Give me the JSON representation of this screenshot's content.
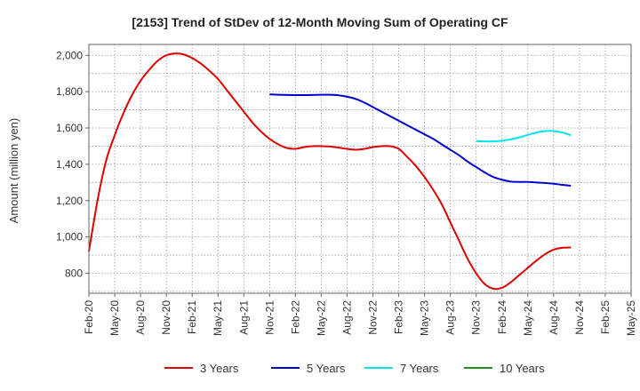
{
  "chart_data": {
    "type": "line",
    "title": "[2153]  Trend of StDev of 12-Month Moving Sum of Operating CF",
    "xlabel": "",
    "ylabel": "Amount (million yen)",
    "ylim": [
      690,
      2060
    ],
    "yticks": [
      800,
      1000,
      1200,
      1400,
      1600,
      1800,
      2000
    ],
    "ytick_labels": [
      "800",
      "1,000",
      "1,200",
      "1,400",
      "1,600",
      "1,800",
      "2,000"
    ],
    "categories": [
      "Feb-20",
      "May-20",
      "Aug-20",
      "Nov-20",
      "Feb-21",
      "May-21",
      "Aug-21",
      "Nov-21",
      "Feb-22",
      "May-22",
      "Aug-22",
      "Nov-22",
      "Feb-23",
      "May-23",
      "Aug-23",
      "Nov-23",
      "Feb-24",
      "May-24",
      "Aug-24",
      "Nov-24",
      "Feb-25",
      "May-25"
    ],
    "grid": true,
    "legend_position": "bottom",
    "series": [
      {
        "name": "3 Years",
        "color": "#dd0000",
        "points": [
          [
            0,
            920
          ],
          [
            1,
            1200
          ],
          [
            2,
            1420
          ],
          [
            3,
            1560
          ],
          [
            4,
            1680
          ],
          [
            5,
            1780
          ],
          [
            6,
            1860
          ],
          [
            7,
            1920
          ],
          [
            8,
            1970
          ],
          [
            9,
            2000
          ],
          [
            10,
            2010
          ],
          [
            11,
            2005
          ],
          [
            12,
            1985
          ],
          [
            13,
            1955
          ],
          [
            14,
            1915
          ],
          [
            15,
            1870
          ],
          [
            16,
            1810
          ],
          [
            17,
            1750
          ],
          [
            18,
            1690
          ],
          [
            19,
            1630
          ],
          [
            20,
            1580
          ],
          [
            21,
            1540
          ],
          [
            22,
            1510
          ],
          [
            23,
            1490
          ],
          [
            24,
            1485
          ],
          [
            25,
            1495
          ],
          [
            26,
            1500
          ],
          [
            27,
            1500
          ],
          [
            28,
            1498
          ],
          [
            29,
            1492
          ],
          [
            30,
            1485
          ],
          [
            31,
            1480
          ],
          [
            32,
            1485
          ],
          [
            33,
            1495
          ],
          [
            34,
            1500
          ],
          [
            35,
            1500
          ],
          [
            36,
            1485
          ],
          [
            37,
            1440
          ],
          [
            38,
            1390
          ],
          [
            39,
            1330
          ],
          [
            40,
            1260
          ],
          [
            41,
            1180
          ],
          [
            42,
            1080
          ],
          [
            43,
            980
          ],
          [
            44,
            880
          ],
          [
            45,
            800
          ],
          [
            46,
            740
          ],
          [
            47,
            715
          ],
          [
            48,
            720
          ],
          [
            49,
            750
          ],
          [
            50,
            790
          ],
          [
            51,
            830
          ],
          [
            52,
            870
          ],
          [
            53,
            905
          ],
          [
            54,
            930
          ],
          [
            55,
            940
          ],
          [
            56,
            942
          ]
        ]
      },
      {
        "name": "5 Years",
        "color": "#0000cc",
        "points": [
          [
            21,
            1785
          ],
          [
            22,
            1783
          ],
          [
            23,
            1782
          ],
          [
            24,
            1781
          ],
          [
            25,
            1781
          ],
          [
            26,
            1782
          ],
          [
            27,
            1783
          ],
          [
            28,
            1783
          ],
          [
            29,
            1780
          ],
          [
            30,
            1772
          ],
          [
            31,
            1760
          ],
          [
            32,
            1740
          ],
          [
            33,
            1715
          ],
          [
            34,
            1690
          ],
          [
            35,
            1665
          ],
          [
            36,
            1640
          ],
          [
            37,
            1615
          ],
          [
            38,
            1590
          ],
          [
            39,
            1565
          ],
          [
            40,
            1540
          ],
          [
            41,
            1510
          ],
          [
            42,
            1480
          ],
          [
            43,
            1450
          ],
          [
            44,
            1415
          ],
          [
            45,
            1385
          ],
          [
            46,
            1355
          ],
          [
            47,
            1330
          ],
          [
            48,
            1315
          ],
          [
            49,
            1305
          ],
          [
            50,
            1303
          ],
          [
            51,
            1303
          ],
          [
            52,
            1300
          ],
          [
            53,
            1297
          ],
          [
            54,
            1293
          ],
          [
            55,
            1287
          ],
          [
            56,
            1282
          ]
        ]
      },
      {
        "name": "7 Years",
        "color": "#00e5ee",
        "points": [
          [
            45,
            1528
          ],
          [
            46,
            1526
          ],
          [
            47,
            1526
          ],
          [
            48,
            1530
          ],
          [
            49,
            1537
          ],
          [
            50,
            1548
          ],
          [
            51,
            1562
          ],
          [
            52,
            1575
          ],
          [
            53,
            1583
          ],
          [
            54,
            1583
          ],
          [
            55,
            1575
          ],
          [
            56,
            1560
          ]
        ]
      },
      {
        "name": "10 Years",
        "color": "#228b22",
        "points": []
      }
    ]
  }
}
